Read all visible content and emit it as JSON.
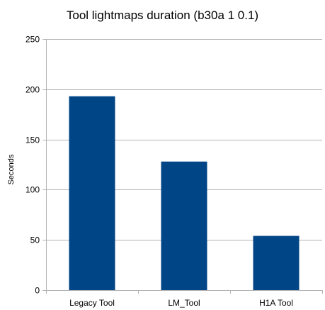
{
  "chart_data": {
    "type": "bar",
    "title": "Tool lightmaps duration (b30a 1 0.1)",
    "xlabel": "",
    "ylabel": "Seconds",
    "categories": [
      "Legacy Tool",
      "LM_Tool",
      "H1A Tool"
    ],
    "values": [
      193,
      128,
      54
    ],
    "ylim": [
      0,
      250
    ],
    "yticks": [
      0,
      50,
      100,
      150,
      200,
      250
    ],
    "bar_color": "#004586",
    "grid_color": "#b3b3b3",
    "grid": true,
    "legend": "none"
  }
}
